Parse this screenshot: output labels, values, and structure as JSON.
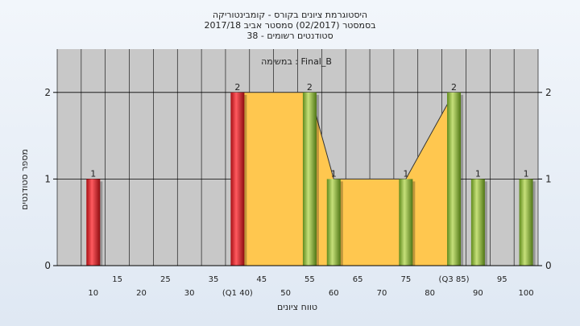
{
  "chart_data": {
    "type": "bar",
    "title_lines": [
      "היסטוגרמת ציונים בקורס - קומבינטוריקה",
      "בסמסטר  (02/2017)  סמסטר אביב 2017/18",
      "סטודנטים רשומים - 38"
    ],
    "subtitle": "במשימה : Final_B",
    "xlabel": "טווח ציונים",
    "ylabel": "מספר סטודנטים",
    "ylim": [
      0,
      2.5
    ],
    "yticks": [
      0,
      1,
      2
    ],
    "xlim": [
      2.5,
      102.5
    ],
    "xticks_top": [
      {
        "x": 15,
        "label": "15"
      },
      {
        "x": 25,
        "label": "25"
      },
      {
        "x": 35,
        "label": "35"
      },
      {
        "x": 45,
        "label": "45"
      },
      {
        "x": 55,
        "label": "55"
      },
      {
        "x": 65,
        "label": "65"
      },
      {
        "x": 75,
        "label": "75"
      },
      {
        "x": 85,
        "label": "(Q3 85)"
      },
      {
        "x": 95,
        "label": "95"
      }
    ],
    "xticks_bottom": [
      {
        "x": 10,
        "label": "10"
      },
      {
        "x": 20,
        "label": "20"
      },
      {
        "x": 30,
        "label": "30"
      },
      {
        "x": 40,
        "label": "(Q1 40)"
      },
      {
        "x": 50,
        "label": "50"
      },
      {
        "x": 60,
        "label": "60"
      },
      {
        "x": 70,
        "label": "70"
      },
      {
        "x": 80,
        "label": "80"
      },
      {
        "x": 90,
        "label": "90"
      },
      {
        "x": 100,
        "label": "100"
      }
    ],
    "bars": [
      {
        "x": 10,
        "value": 1,
        "color": "red"
      },
      {
        "x": 40,
        "value": 2,
        "color": "red"
      },
      {
        "x": 55,
        "value": 2,
        "color": "green"
      },
      {
        "x": 60,
        "value": 1,
        "color": "green"
      },
      {
        "x": 75,
        "value": 1,
        "color": "green"
      },
      {
        "x": 85,
        "value": 2,
        "color": "green"
      },
      {
        "x": 90,
        "value": 1,
        "color": "green"
      },
      {
        "x": 100,
        "value": 1,
        "color": "green"
      }
    ],
    "quartile_area": [
      {
        "x": 40,
        "value": 2
      },
      {
        "x": 55,
        "value": 2
      },
      {
        "x": 60,
        "value": 1
      },
      {
        "x": 75,
        "value": 1
      },
      {
        "x": 85,
        "value": 2
      }
    ],
    "colors": {
      "red": "#e8252b",
      "green": "#93c23a",
      "area": "#ffc74f",
      "plot_bg": "#c8c8c8",
      "grid": "#000000"
    }
  }
}
